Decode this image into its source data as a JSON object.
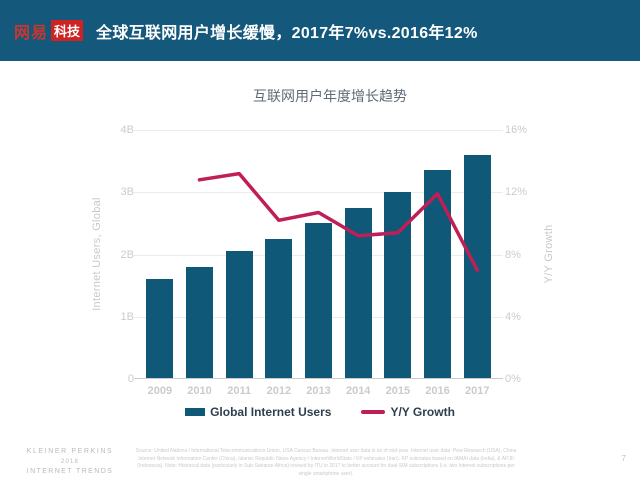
{
  "header": {
    "logo_brand": "网易",
    "logo_sub": "科技",
    "title": "全球互联网用户增长缓慢，2017年7%vs.2016年12%"
  },
  "chart": {
    "title": "互联网用户年度增长趋势",
    "left_axis": {
      "title": "Internet Users, Global",
      "ticks": [
        "4B",
        "3B",
        "2B",
        "1B",
        "0"
      ]
    },
    "right_axis": {
      "title": "Y/Y Growth",
      "ticks": [
        "16%",
        "12%",
        "8%",
        "4%",
        "0%"
      ]
    },
    "legend": [
      {
        "label": "Global Internet Users",
        "swatch": "bar",
        "color": "#0f5878"
      },
      {
        "label": "Y/Y Growth",
        "swatch": "line",
        "color": "#c01e56"
      }
    ]
  },
  "chart_data": {
    "type": "bar",
    "title": "互联网用户年度增长趋势",
    "categories": [
      "2009",
      "2010",
      "2011",
      "2012",
      "2013",
      "2014",
      "2015",
      "2016",
      "2017"
    ],
    "series": [
      {
        "name": "Global Internet Users",
        "type": "bar",
        "axis": "left",
        "unit": "B",
        "values": [
          1.6,
          1.8,
          2.05,
          2.25,
          2.5,
          2.75,
          3.0,
          3.35,
          3.6
        ]
      },
      {
        "name": "Y/Y Growth",
        "type": "line",
        "axis": "right",
        "unit": "%",
        "values": [
          null,
          12.8,
          13.2,
          10.2,
          10.7,
          9.2,
          9.4,
          11.9,
          7.0
        ]
      }
    ],
    "ylabel_left": "Internet Users, Global",
    "ylabel_right": "Y/Y Growth",
    "ylim_left": [
      0,
      4
    ],
    "ylim_right": [
      0,
      16
    ],
    "grid": true,
    "legend_position": "bottom"
  },
  "colors": {
    "header_bg": "#14587c",
    "logo_red": "#cf2222",
    "bar": "#0f5878",
    "line": "#c01e56",
    "gridline": "#e9ebec",
    "axis_text": "#c9cccf"
  },
  "footer": {
    "brand_line1": "KLEINER PERKINS",
    "brand_line2": "2018",
    "brand_line3": "INTERNET TRENDS",
    "source": "Source: United Nations / International Telecommunications Union, USA Census Bureau. Internet user data is as of mid-year. Internet user data: Pew Research (USA), China Internet Network Information Center (China), Islamic Republic News Agency / InternetWorldStats / KP estimates (Iran). KP estimates based on IAMAI data (India), & APJII (Indonesia). Note: Historical data (particularly in Sub-Saharan Africa) revised by ITU in 2017 to better account for dual-SIM subscriptions (i.e. two Internet subscriptions per single smartphone user).",
    "page_number": "7"
  }
}
